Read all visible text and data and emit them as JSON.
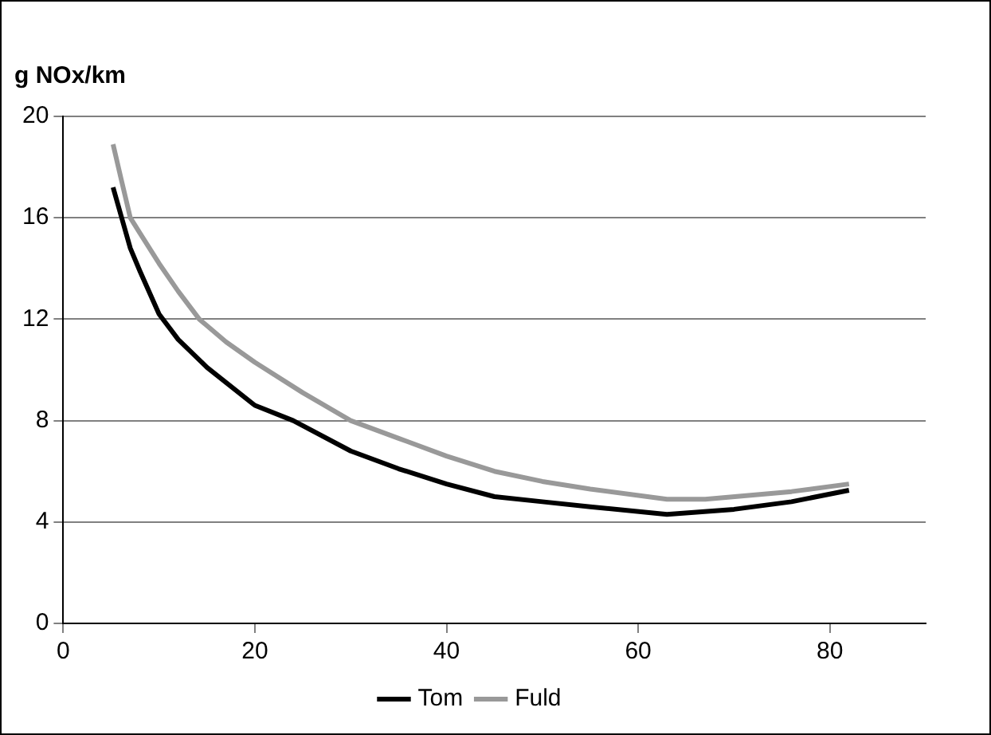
{
  "chart_data": {
    "type": "line",
    "ylabel": "g NOx/km",
    "xlim": [
      0,
      90
    ],
    "xticks": [
      0,
      20,
      40,
      60,
      80
    ],
    "ylim": [
      0,
      20
    ],
    "yticks": [
      0,
      4,
      8,
      12,
      16,
      20
    ],
    "grid": "y",
    "legend": "bottom",
    "marker": "none",
    "line_style": "solid",
    "series": [
      {
        "name": "Tom",
        "color": "#000000",
        "x": [
          5.2,
          6.1,
          7,
          8,
          10,
          12,
          15,
          20,
          24,
          30,
          35,
          40,
          45,
          50,
          55,
          63,
          70,
          76,
          82
        ],
        "values": [
          17.2,
          16,
          14.8,
          13.9,
          12.2,
          11.2,
          10.1,
          8.6,
          8,
          6.8,
          6.1,
          5.5,
          5,
          4.8,
          4.6,
          4.3,
          4.5,
          4.8,
          5.25
        ]
      },
      {
        "name": "Fuld",
        "color": "#999999",
        "x": [
          5.2,
          6,
          7,
          8,
          10,
          12,
          14.2,
          17,
          20,
          25,
          30,
          35,
          40,
          45,
          50,
          55,
          63,
          67,
          76,
          82
        ],
        "values": [
          18.9,
          17.6,
          16,
          15.4,
          14.2,
          13.1,
          12,
          11.1,
          10.3,
          9.1,
          8,
          7.3,
          6.6,
          6,
          5.6,
          5.3,
          4.9,
          4.9,
          5.2,
          5.5
        ]
      }
    ]
  }
}
